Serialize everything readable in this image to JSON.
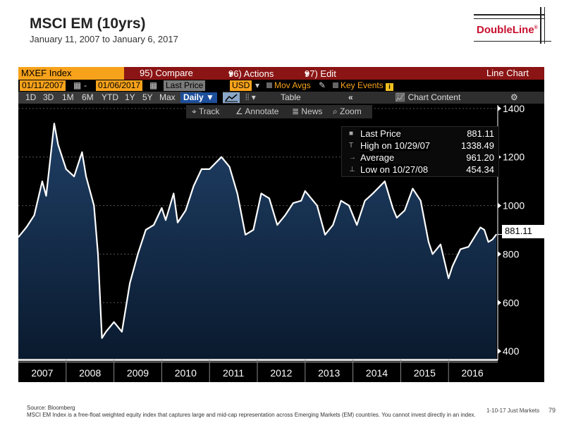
{
  "header": {
    "title": "MSCI EM (10yrs)",
    "subtitle": "January 11, 2007 to January 6, 2017",
    "logo": "DoubleLine",
    "logo_mark": "®"
  },
  "terminal": {
    "top_bar": {
      "ticker": "MXEF Index",
      "compare": "95) Compare",
      "actions": "96) Actions",
      "actions_arrow": "▾",
      "edit": "97) Edit",
      "edit_arrow": "▾",
      "chart_type": "Line Chart"
    },
    "second_bar": {
      "start_date": "01/11/2007",
      "dash": "-",
      "end_date": "01/06/2017",
      "field": "Last Price",
      "currency": "USD",
      "mov_avgs": "Mov Avgs",
      "key_events": "Key Events",
      "info": "i"
    },
    "range_bar": {
      "ranges": [
        "1D",
        "3D",
        "1M",
        "6M",
        "YTD",
        "1Y",
        "5Y",
        "Max"
      ],
      "frequency": "Daily ▼",
      "table": "Table",
      "collapse": "«",
      "chart_content": "Chart Content",
      "settings": "⚙"
    },
    "toolbar": {
      "track": "⌖ Track",
      "annotate": "∠ Annotate",
      "news": "≣ News",
      "zoom": "⌕ Zoom"
    },
    "legend": [
      {
        "label": "Last Price",
        "value": "881.11",
        "symbol": "■"
      },
      {
        "label": "High on 10/29/07",
        "value": "1338.49",
        "symbol": "T"
      },
      {
        "label": "Average",
        "value": "961.20",
        "symbol": "→"
      },
      {
        "label": "Low on 10/27/08",
        "value": "454.34",
        "symbol": "⊥"
      }
    ],
    "last_price_label": "881.11"
  },
  "chart_data": {
    "type": "area",
    "title": "MSCI EM (10yrs)",
    "subtitle": "January 11, 2007 to January 6, 2017",
    "ylim": [
      380,
      1420
    ],
    "y_ticks": [
      400,
      600,
      800,
      1000,
      1200,
      1400
    ],
    "x_tick_labels": [
      "2007",
      "2008",
      "2009",
      "2010",
      "2011",
      "2012",
      "2013",
      "2014",
      "2015",
      "2016"
    ],
    "y_axis_position": "right",
    "colors": {
      "line": "#ffffff",
      "fill_top": "#1f3f66",
      "fill_bottom": "#0a1a2e",
      "background": "#000000"
    },
    "series": [
      {
        "name": "Last Price",
        "x": [
          "2007-01",
          "2007-03",
          "2007-05",
          "2007-07",
          "2007-08",
          "2007-10",
          "2007-11",
          "2008-01",
          "2008-03",
          "2008-05",
          "2008-06",
          "2008-08",
          "2008-09",
          "2008-10",
          "2008-11",
          "2008-12",
          "2009-01",
          "2009-03",
          "2009-05",
          "2009-07",
          "2009-09",
          "2009-11",
          "2010-01",
          "2010-02",
          "2010-04",
          "2010-05",
          "2010-07",
          "2010-09",
          "2010-11",
          "2011-01",
          "2011-04",
          "2011-06",
          "2011-08",
          "2011-10",
          "2011-12",
          "2012-02",
          "2012-04",
          "2012-06",
          "2012-08",
          "2012-10",
          "2012-12",
          "2013-01",
          "2013-04",
          "2013-06",
          "2013-08",
          "2013-10",
          "2013-12",
          "2014-02",
          "2014-04",
          "2014-06",
          "2014-09",
          "2014-11",
          "2014-12",
          "2015-02",
          "2015-04",
          "2015-06",
          "2015-08",
          "2015-09",
          "2015-11",
          "2016-01",
          "2016-02",
          "2016-04",
          "2016-06",
          "2016-09",
          "2016-10",
          "2016-11",
          "2016-12",
          "2017-01"
        ],
        "values": [
          870,
          910,
          960,
          1100,
          1040,
          1338,
          1250,
          1150,
          1120,
          1220,
          1120,
          1000,
          800,
          454,
          480,
          500,
          520,
          480,
          680,
          800,
          900,
          920,
          990,
          940,
          1050,
          930,
          980,
          1080,
          1150,
          1150,
          1200,
          1160,
          1050,
          880,
          900,
          1050,
          1030,
          920,
          960,
          1010,
          1020,
          1060,
          1000,
          880,
          920,
          1020,
          1000,
          920,
          1020,
          1050,
          1100,
          990,
          950,
          980,
          1070,
          1020,
          850,
          800,
          840,
          700,
          750,
          820,
          830,
          910,
          900,
          850,
          860,
          881
        ]
      }
    ]
  },
  "footer": {
    "source": "Source: Bloomberg",
    "note": "MSCI EM Index is a free-float weighted equity index that captures large and mid-cap representation across Emerging Markets (EM) countries. You cannot invest directly in an index.",
    "right_text": "1-10-17 Just Markets",
    "page": "79"
  }
}
